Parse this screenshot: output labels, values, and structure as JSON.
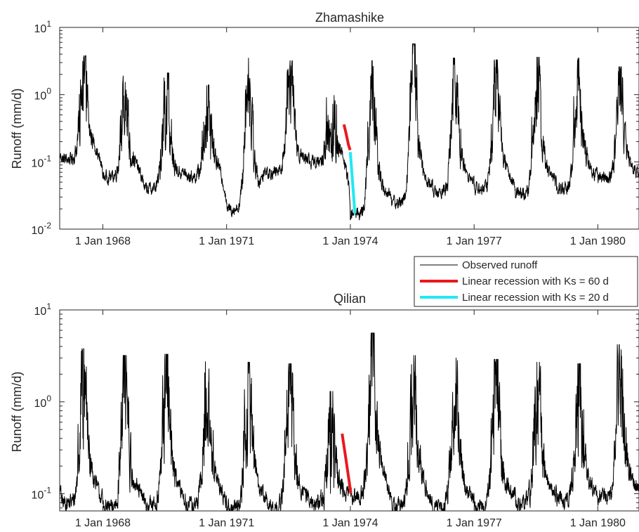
{
  "chart_data": [
    {
      "type": "line",
      "title": "Zhamashike",
      "xlabel": "",
      "ylabel": "Runoff (mm/d)",
      "yscale": "log",
      "ylim": [
        0.01,
        10
      ],
      "xlim": [
        "1966-12-15",
        "1980-12-31"
      ],
      "x_ticks": [
        "1 Jan 1968",
        "1 Jan 1971",
        "1 Jan 1974",
        "1 Jan 1977",
        "1 Jan 1980"
      ],
      "y_ticks": [
        {
          "base": "10",
          "exp": "-2"
        },
        {
          "base": "10",
          "exp": "-1"
        },
        {
          "base": "10",
          "exp": "0"
        },
        {
          "base": "10",
          "exp": "1"
        }
      ],
      "grid": false,
      "series": [
        {
          "name": "Observed runoff",
          "color": "#000000",
          "style": "seasonal",
          "peaks": [
            {
              "year": 1967,
              "peak": 3.8,
              "base": 0.11,
              "spread": 0.25
            },
            {
              "year": 1968,
              "peak": 1.9,
              "base": 0.06,
              "spread": 0.2
            },
            {
              "year": 1969,
              "peak": 2.1,
              "base": 0.04,
              "spread": 0.2
            },
            {
              "year": 1970,
              "peak": 1.4,
              "base": 0.06,
              "spread": 0.2
            },
            {
              "year": 1971,
              "peak": 3.5,
              "base": 0.02,
              "spread": 0.25
            },
            {
              "year": 1972,
              "peak": 3.2,
              "base": 0.07,
              "spread": 0.25
            },
            {
              "year": 1973,
              "peak": 1.2,
              "base": 0.1,
              "spread": 0.2
            },
            {
              "year": 1974,
              "peak": 3.2,
              "base": 0.017,
              "spread": 0.25
            },
            {
              "year": 1975,
              "peak": 5.7,
              "base": 0.025,
              "spread": 0.25
            },
            {
              "year": 1976,
              "peak": 3.5,
              "base": 0.035,
              "spread": 0.25
            },
            {
              "year": 1977,
              "peak": 3.3,
              "base": 0.04,
              "spread": 0.25
            },
            {
              "year": 1978,
              "peak": 3.6,
              "base": 0.035,
              "spread": 0.25
            },
            {
              "year": 1979,
              "peak": 3.5,
              "base": 0.04,
              "spread": 0.25
            },
            {
              "year": 1980,
              "peak": 2.6,
              "base": 0.055,
              "spread": 0.25
            }
          ]
        },
        {
          "name": "Linear recession with Ks = 60 d",
          "color": "#e8191e",
          "points": [
            [
              "1973-11-05",
              0.36
            ],
            [
              "1973-11-25",
              0.26
            ],
            [
              "1973-12-15",
              0.18
            ],
            [
              "1973-12-30",
              0.15
            ]
          ]
        },
        {
          "name": "Linear recession with Ks = 20 d",
          "color": "#22e8f4",
          "points": [
            [
              "1974-01-01",
              0.14
            ],
            [
              "1974-01-25",
              0.04
            ],
            [
              "1974-02-10",
              0.017
            ]
          ]
        }
      ]
    },
    {
      "type": "line",
      "title": "Qilian",
      "xlabel": "",
      "ylabel": "Runoff (mm/d)",
      "yscale": "log",
      "ylim": [
        0.065,
        10
      ],
      "xlim": [
        "1966-12-15",
        "1980-12-31"
      ],
      "x_ticks": [
        "1 Jan 1968",
        "1 Jan 1971",
        "1 Jan 1974",
        "1 Jan 1977",
        "1 Jan 1980"
      ],
      "y_ticks": [
        {
          "base": "10",
          "exp": "-1"
        },
        {
          "base": "10",
          "exp": "0"
        },
        {
          "base": "10",
          "exp": "1"
        }
      ],
      "grid": false,
      "series": [
        {
          "name": "Observed runoff",
          "color": "#000000",
          "style": "seasonal",
          "peaks": [
            {
              "year": 1967,
              "peak": 3.8,
              "base": 0.08,
              "spread": 0.3
            },
            {
              "year": 1968,
              "peak": 3.2,
              "base": 0.07,
              "spread": 0.3
            },
            {
              "year": 1969,
              "peak": 3.3,
              "base": 0.075,
              "spread": 0.3
            },
            {
              "year": 1970,
              "peak": 3.0,
              "base": 0.075,
              "spread": 0.3
            },
            {
              "year": 1971,
              "peak": 2.7,
              "base": 0.07,
              "spread": 0.3
            },
            {
              "year": 1972,
              "peak": 2.6,
              "base": 0.07,
              "spread": 0.3
            },
            {
              "year": 1973,
              "peak": 1.3,
              "base": 0.08,
              "spread": 0.3
            },
            {
              "year": 1974,
              "peak": 5.6,
              "base": 0.095,
              "spread": 0.3
            },
            {
              "year": 1975,
              "peak": 3.2,
              "base": 0.075,
              "spread": 0.3
            },
            {
              "year": 1976,
              "peak": 3.0,
              "base": 0.07,
              "spread": 0.3
            },
            {
              "year": 1977,
              "peak": 2.9,
              "base": 0.075,
              "spread": 0.3
            },
            {
              "year": 1978,
              "peak": 2.7,
              "base": 0.08,
              "spread": 0.3
            },
            {
              "year": 1979,
              "peak": 2.6,
              "base": 0.085,
              "spread": 0.3
            },
            {
              "year": 1980,
              "peak": 4.2,
              "base": 0.09,
              "spread": 0.3
            }
          ]
        },
        {
          "name": "Linear recession with Ks = 60 d",
          "color": "#e8191e",
          "points": [
            [
              "1973-10-20",
              0.45
            ],
            [
              "1973-11-20",
              0.25
            ],
            [
              "1973-12-20",
              0.14
            ],
            [
              "1974-01-05",
              0.1
            ]
          ]
        }
      ]
    }
  ],
  "legend": {
    "placement": "between-panels-right",
    "entries": [
      {
        "label": "Observed runoff",
        "color": "#000000"
      },
      {
        "label": "Linear recession with Ks = 60 d",
        "color": "#e8191e"
      },
      {
        "label": "Linear recession with Ks = 20 d",
        "color": "#22e8f4"
      }
    ]
  }
}
